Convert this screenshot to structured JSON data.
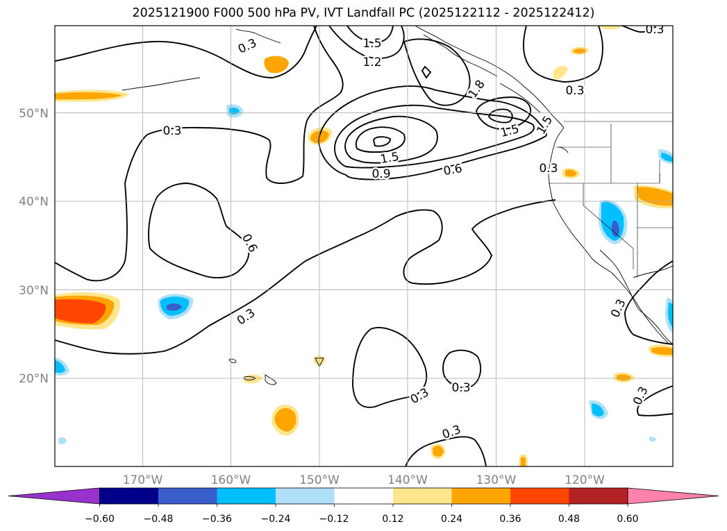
{
  "title": "2025121900 F000 500 hPa PV, IVT Landfall PC (2025122112 - 2025122412)",
  "map": {
    "lat_labels": [
      "50°N",
      "40°N",
      "30°N",
      "20°N"
    ],
    "lon_labels": [
      "170°W",
      "160°W",
      "150°W",
      "140°W",
      "130°W",
      "120°W"
    ],
    "axis_label_color": "#808080",
    "gridlines": true
  },
  "contours": {
    "field": "500 hPa PV",
    "color": "#000000",
    "labels": [
      "0.3",
      "0.3",
      "0.3",
      "0.3",
      "0.3",
      "0.3",
      "0.3",
      "0.3",
      "0.3",
      "0.3",
      "0.3",
      "0.6",
      "0.6",
      "0.9",
      "1.2",
      "1.5",
      "1.5",
      "1.5",
      "1.5",
      "1.8"
    ]
  },
  "colorbar": {
    "ticks": [
      "−0.60",
      "−0.48",
      "−0.36",
      "−0.24",
      "−0.12",
      "0.12",
      "0.24",
      "0.36",
      "0.48",
      "0.60"
    ],
    "colors": [
      "#9932cc",
      "#00008b",
      "#3a5fcd",
      "#00bfff",
      "#b0e0f8",
      "#ffffff",
      "#ffe68c",
      "#ffa500",
      "#ff4500",
      "#b22222",
      "#ff82ab"
    ],
    "extend": "both"
  }
}
